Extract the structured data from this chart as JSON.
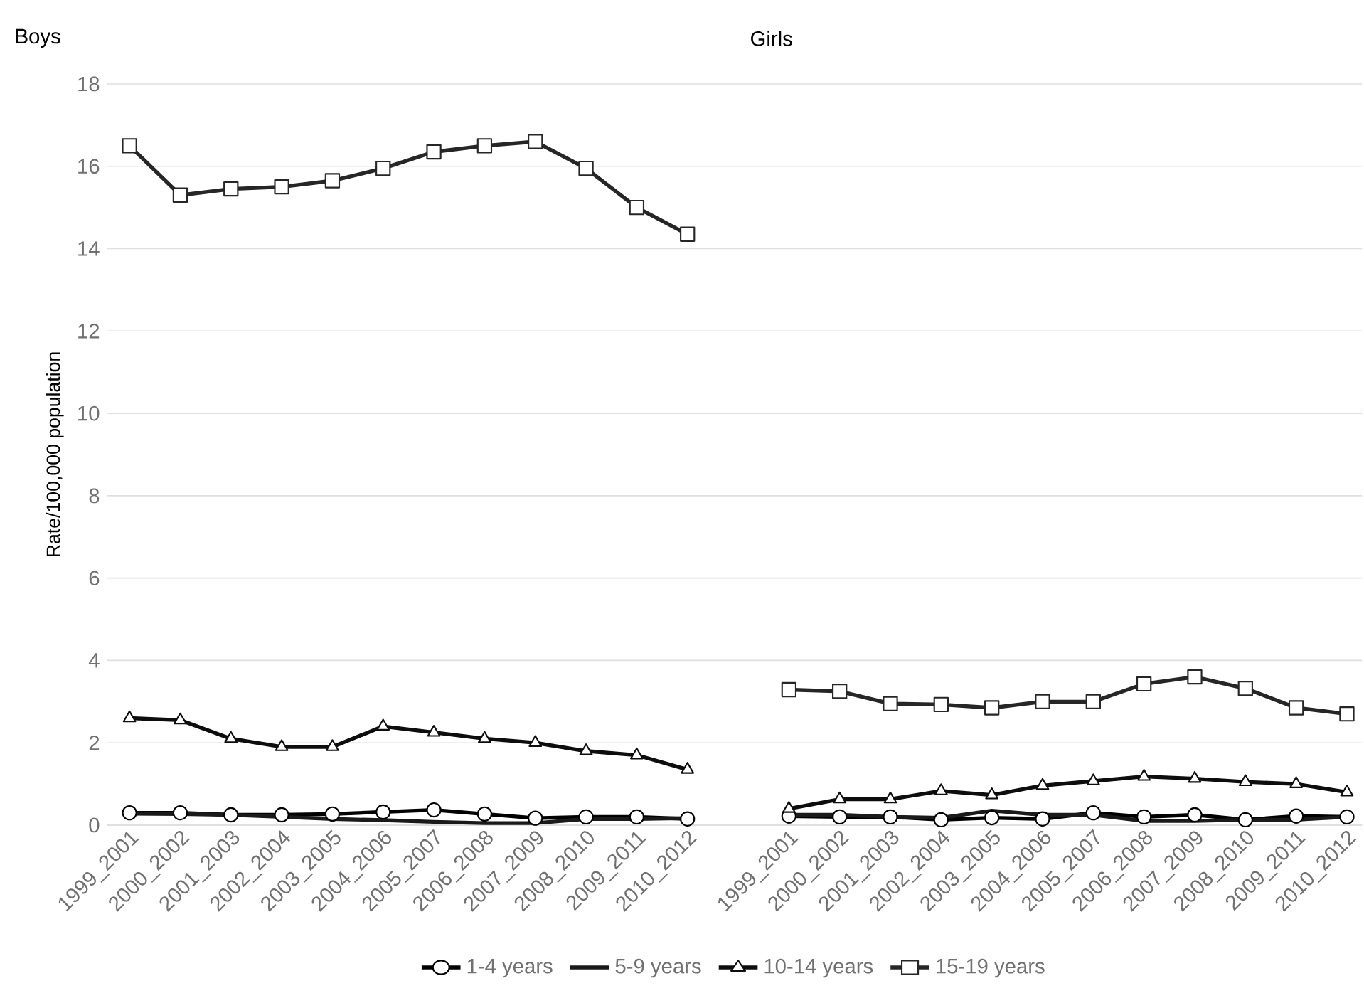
{
  "chart_data": {
    "type": "line",
    "annotations": [
      "Boys",
      "Girls"
    ],
    "ylabel": "Rate/100,000 population",
    "categories": [
      "1999_2001",
      "2000_2002",
      "2001_2003",
      "2002_2004",
      "2003_2005",
      "2004_2006",
      "2005_2007",
      "2006_2008",
      "2007_2009",
      "2008_2010",
      "2009_2011",
      "2010_2012",
      null,
      "1999_2001",
      "2000_2002",
      "2001_2003",
      "2002_2004",
      "2003_2005",
      "2004_2006",
      "2005_2007",
      "2006_2008",
      "2007_2009",
      "2008_2010",
      "2009_2011",
      "2010_2012"
    ],
    "series": [
      {
        "name": "1-4 years",
        "color": "#000000",
        "marker": "circle",
        "values": [
          0.3,
          0.3,
          0.25,
          0.25,
          0.27,
          0.32,
          0.37,
          0.27,
          0.17,
          0.2,
          0.2,
          0.15,
          null,
          0.22,
          0.2,
          0.2,
          0.13,
          0.18,
          0.15,
          0.3,
          0.2,
          0.25,
          0.13,
          0.22,
          0.2
        ]
      },
      {
        "name": "5-9 years",
        "color": "#1a1a1a",
        "marker": "none",
        "values": [
          0.28,
          0.27,
          0.25,
          0.2,
          0.15,
          0.12,
          0.08,
          0.05,
          0.05,
          0.15,
          0.15,
          0.17,
          null,
          0.25,
          0.25,
          0.2,
          0.18,
          0.35,
          0.25,
          0.25,
          0.1,
          0.1,
          0.13,
          0.13,
          0.2
        ]
      },
      {
        "name": "10-14 years",
        "color": "#0d0d0d",
        "marker": "triangle",
        "values": [
          2.6,
          2.55,
          2.1,
          1.9,
          1.9,
          2.4,
          2.25,
          2.1,
          2.0,
          1.8,
          1.7,
          1.35,
          null,
          0.4,
          0.63,
          0.63,
          0.83,
          0.73,
          0.96,
          1.07,
          1.18,
          1.13,
          1.05,
          1.0,
          0.8
        ]
      },
      {
        "name": "15-19 years",
        "color": "#262626",
        "marker": "square",
        "values": [
          16.5,
          15.3,
          15.45,
          15.5,
          15.65,
          15.95,
          16.35,
          16.5,
          16.6,
          15.95,
          15.0,
          14.35,
          null,
          3.29,
          3.25,
          2.95,
          2.93,
          2.85,
          3.0,
          3.0,
          3.43,
          3.6,
          3.32,
          2.85,
          2.7
        ]
      }
    ],
    "ylim": [
      0,
      18
    ],
    "yticks": [
      0,
      2,
      4,
      6,
      8,
      10,
      12,
      14,
      16,
      18
    ],
    "grid": "y",
    "legend": "bottom",
    "line_style": "solid"
  }
}
